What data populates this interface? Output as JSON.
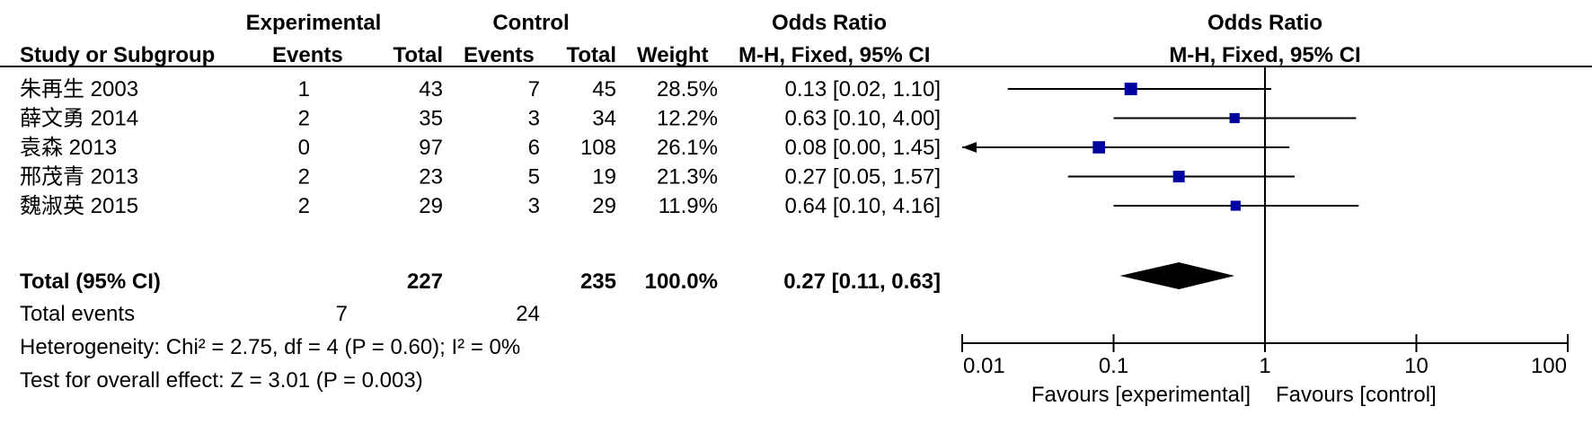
{
  "headers": {
    "experimental": "Experimental",
    "control": "Control",
    "odds_ratio_table": "Odds Ratio",
    "odds_ratio_plot": "Odds Ratio",
    "study": "Study or Subgroup",
    "exp_events": "Events",
    "exp_total": "Total",
    "ctl_events": "Events",
    "ctl_total": "Total",
    "weight": "Weight",
    "method_table": "M-H, Fixed, 95% CI",
    "method_plot": "M-H, Fixed, 95% CI"
  },
  "studies": [
    {
      "name": "朱再生 2003",
      "exp_events": "1",
      "exp_total": "43",
      "ctl_events": "7",
      "ctl_total": "45",
      "weight": "28.5%",
      "or_text": "0.13 [0.02, 1.10]"
    },
    {
      "name": "薛文勇 2014",
      "exp_events": "2",
      "exp_total": "35",
      "ctl_events": "3",
      "ctl_total": "34",
      "weight": "12.2%",
      "or_text": "0.63 [0.10, 4.00]"
    },
    {
      "name": "袁森 2013",
      "exp_events": "0",
      "exp_total": "97",
      "ctl_events": "6",
      "ctl_total": "108",
      "weight": "26.1%",
      "or_text": "0.08 [0.00, 1.45]"
    },
    {
      "name": "邢茂青 2013",
      "exp_events": "2",
      "exp_total": "23",
      "ctl_events": "5",
      "ctl_total": "19",
      "weight": "21.3%",
      "or_text": "0.27 [0.05, 1.57]"
    },
    {
      "name": "魏淑英 2015",
      "exp_events": "2",
      "exp_total": "29",
      "ctl_events": "3",
      "ctl_total": "29",
      "weight": "11.9%",
      "or_text": "0.64 [0.10, 4.16]"
    }
  ],
  "total": {
    "label": "Total (95% CI)",
    "exp_total": "227",
    "ctl_total": "235",
    "weight": "100.0%",
    "or_text": "0.27 [0.11, 0.63]"
  },
  "total_events": {
    "label": "Total events",
    "exp": "7",
    "ctl": "24"
  },
  "heterogeneity": "Heterogeneity: Chi² = 2.75, df = 4 (P = 0.60); I² = 0%",
  "overall_effect": "Test for overall effect: Z = 3.01 (P = 0.003)",
  "axis": {
    "ticks": [
      0.01,
      0.1,
      1,
      10,
      100
    ],
    "tick_labels": [
      "0.01",
      "0.1",
      "1",
      "10",
      "100"
    ],
    "favours_left": "Favours [experimental]",
    "favours_right": "Favours [control]"
  },
  "colors": {
    "marker": "#0000a0",
    "line": "#000000"
  },
  "chart_data": {
    "type": "forest",
    "scale": "log",
    "xlim": [
      0.01,
      100
    ],
    "reference_line": 1,
    "series": [
      {
        "name": "朱再生 2003",
        "or": 0.13,
        "ci_low": 0.02,
        "ci_high": 1.1,
        "weight": 28.5
      },
      {
        "name": "薛文勇 2014",
        "or": 0.63,
        "ci_low": 0.1,
        "ci_high": 4.0,
        "weight": 12.2
      },
      {
        "name": "袁森 2013",
        "or": 0.08,
        "ci_low": 0.0,
        "ci_high": 1.45,
        "weight": 26.1
      },
      {
        "name": "邢茂青 2013",
        "or": 0.27,
        "ci_low": 0.05,
        "ci_high": 1.57,
        "weight": 21.3
      },
      {
        "name": "魏淑英 2015",
        "or": 0.64,
        "ci_low": 0.1,
        "ci_high": 4.16,
        "weight": 11.9
      }
    ],
    "pooled": {
      "or": 0.27,
      "ci_low": 0.11,
      "ci_high": 0.63
    }
  }
}
